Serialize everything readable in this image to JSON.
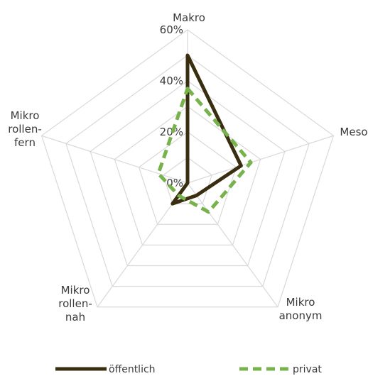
{
  "chart_data": {
    "type": "radar",
    "axes": [
      [
        "Makro"
      ],
      [
        "Meso"
      ],
      [
        "Mikro",
        "anonym"
      ],
      [
        "Mikro",
        "rollen-",
        "nah"
      ],
      [
        "Mikro",
        "rollen-",
        "fern"
      ]
    ],
    "r_ticks": [
      "0%",
      "20%",
      "40%",
      "60%"
    ],
    "r_range": [
      0,
      60
    ],
    "series": [
      {
        "name": "öffentlich",
        "values": [
          50,
          22,
          6,
          10,
          0
        ],
        "color": "#3a2e10",
        "dashed": false
      },
      {
        "name": "privat",
        "values": [
          37,
          26,
          14,
          6,
          12
        ],
        "color": "#77b24c",
        "dashed": true
      }
    ],
    "grid": true,
    "legend_position": "bottom"
  }
}
